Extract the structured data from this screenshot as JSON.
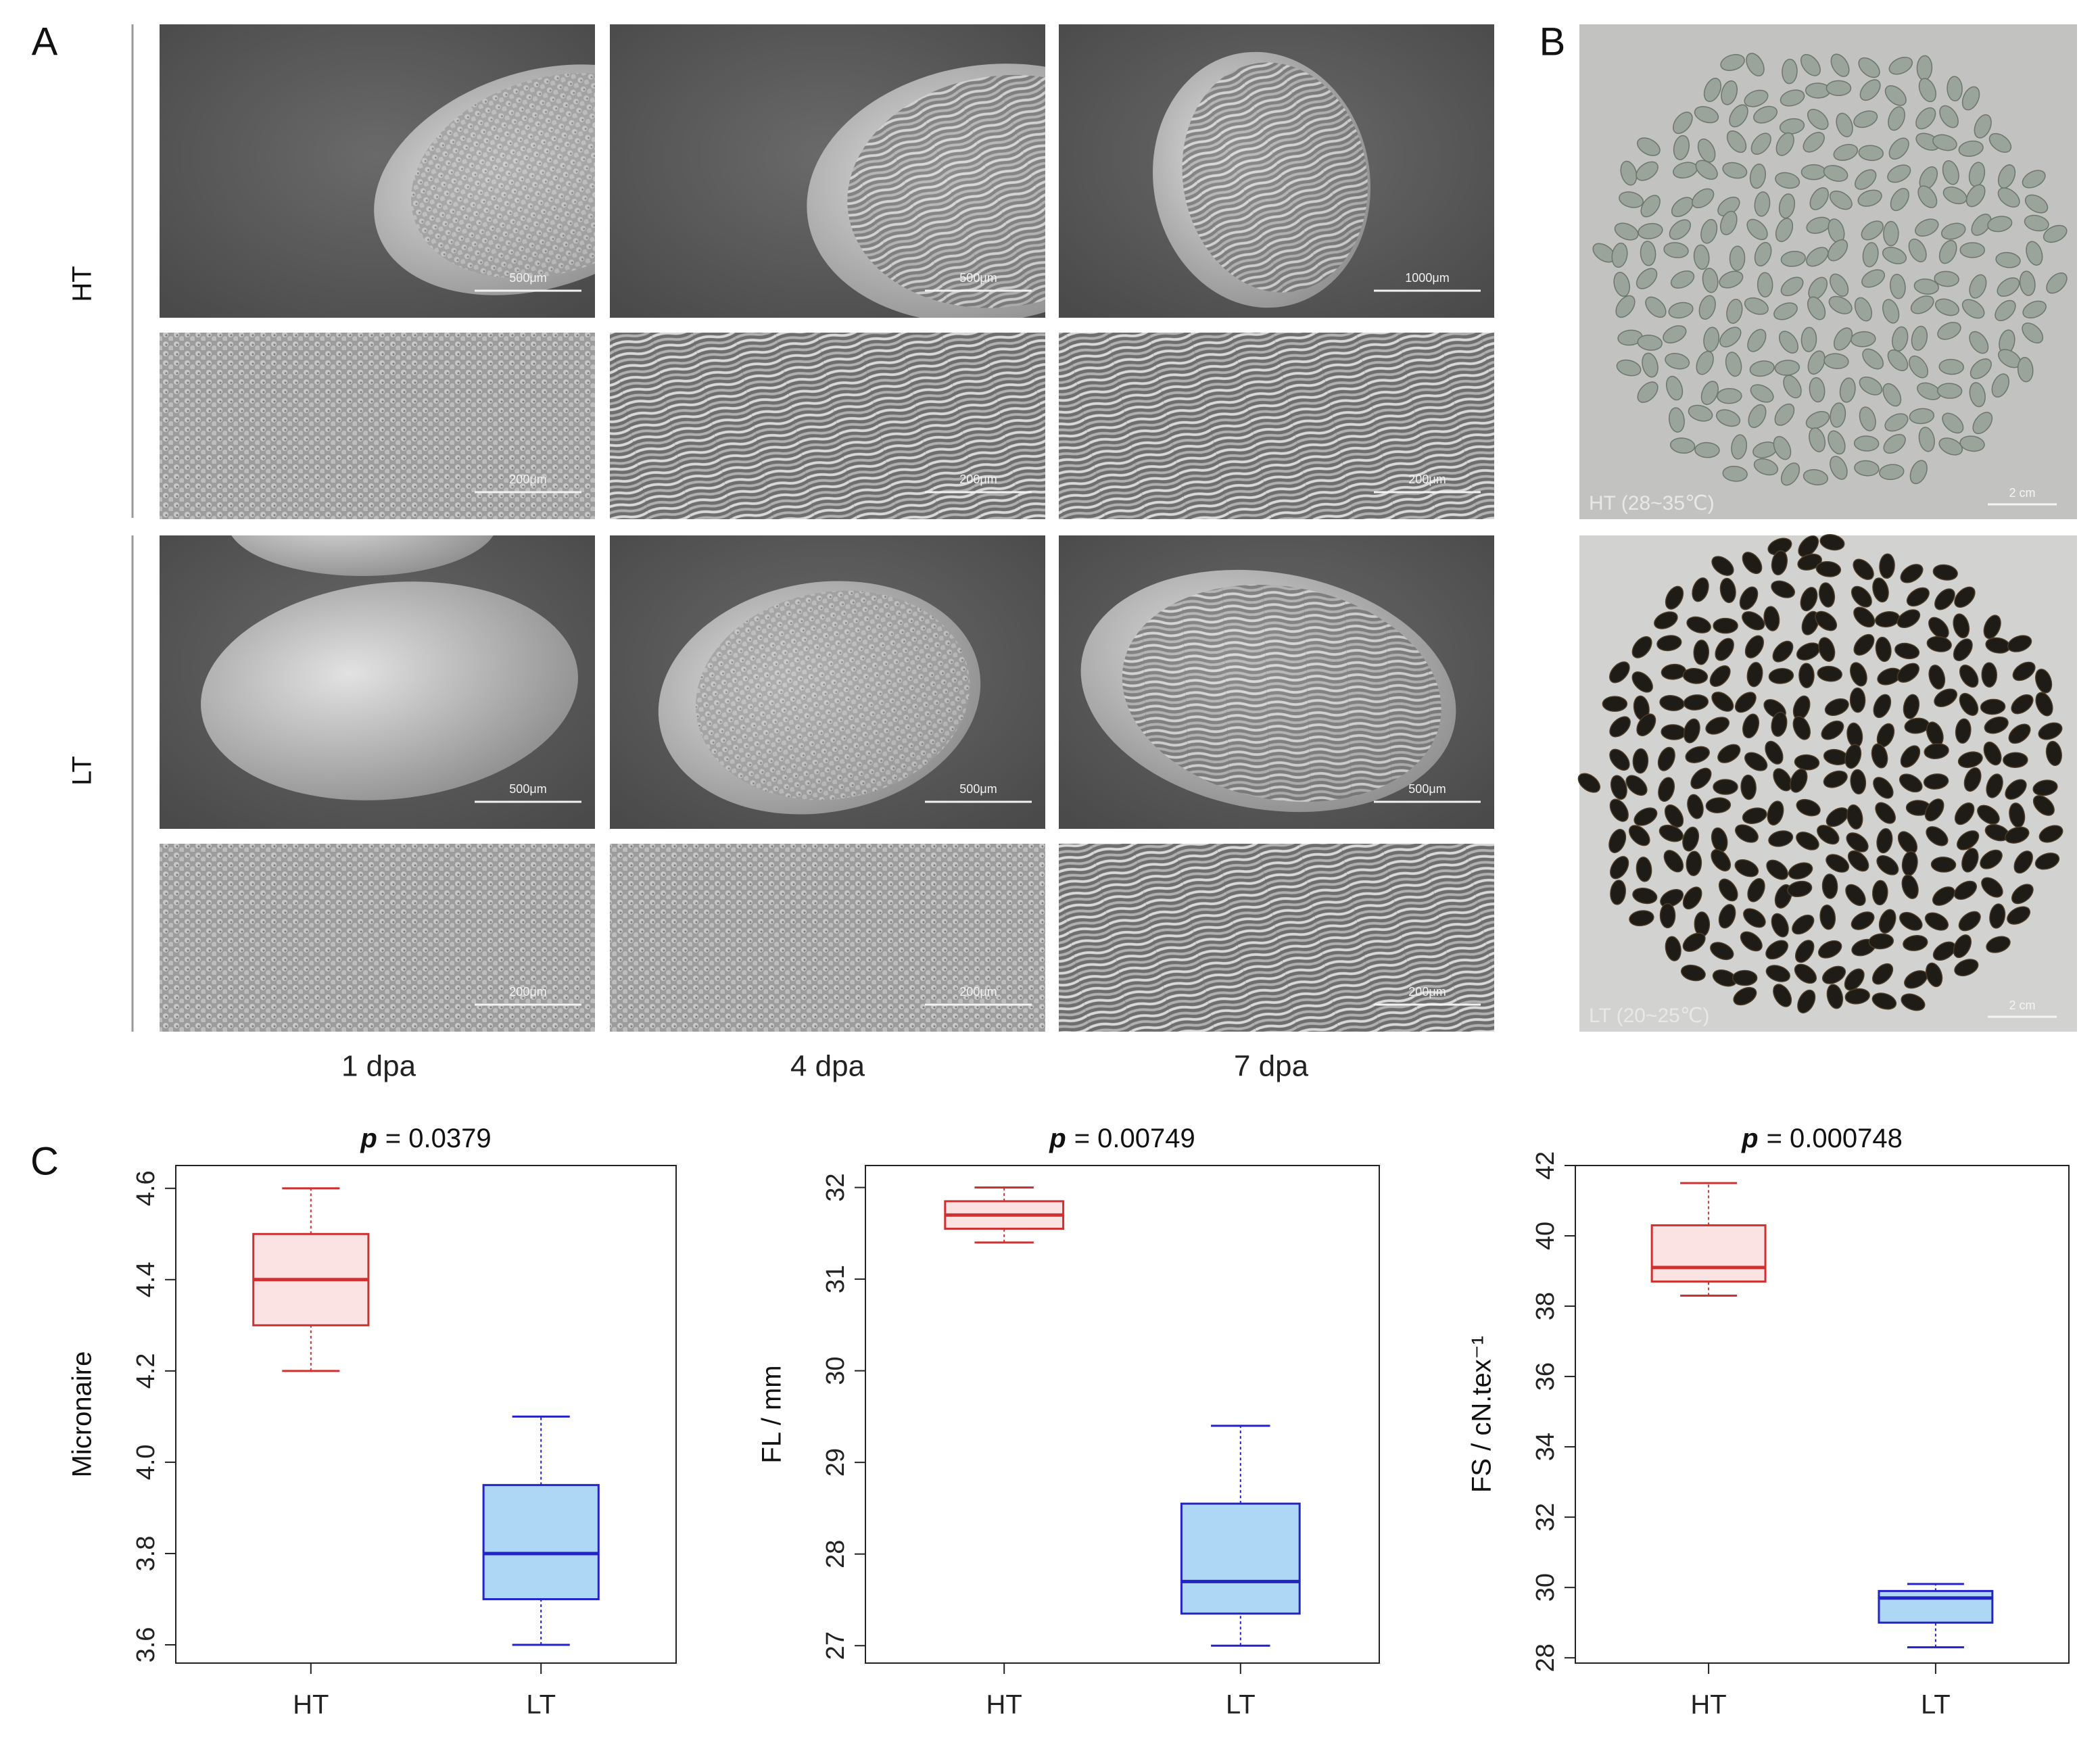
{
  "panel_labels": [
    "A",
    "B",
    "C"
  ],
  "panel_a": {
    "row_labels": [
      "HT",
      "LT"
    ],
    "column_labels": [
      "1 dpa",
      "4 dpa",
      "7 dpa"
    ],
    "scale_bars": [
      [
        "500μm",
        "500μm",
        "1000μm"
      ],
      [
        "200μm",
        "200μm",
        "200μm"
      ],
      [
        "500μm",
        "500μm",
        "500μm"
      ],
      [
        "200μm",
        "200μm",
        "200μm"
      ]
    ]
  },
  "panel_b": {
    "images": [
      {
        "label": "HT (28~35℃)",
        "scale_bar": "2 cm"
      },
      {
        "label": "LT (20~25℃)",
        "scale_bar": "2 cm"
      }
    ]
  },
  "chart_data": [
    {
      "type": "box",
      "title_emphasis": "p",
      "title": "= 0.0379",
      "ylabel": "Micronaire",
      "categories": [
        "HT",
        "LT"
      ],
      "boxes": [
        {
          "whislo": 4.2,
          "q1": 4.3,
          "med": 4.4,
          "q3": 4.5,
          "whishi": 4.6,
          "color": "#d03030",
          "fill": "#fce3e3"
        },
        {
          "whislo": 3.6,
          "q1": 3.7,
          "med": 3.8,
          "q3": 3.95,
          "whishi": 4.1,
          "color": "#2323c8",
          "fill": "#aed6f5"
        }
      ],
      "ylim": [
        3.56,
        4.65
      ],
      "yticks": [
        3.6,
        3.8,
        {
          "value": 4,
          "label": "4.0"
        },
        4.2,
        4.4,
        4.6
      ]
    },
    {
      "type": "box",
      "title_emphasis": "p",
      "title": "= 0.00749",
      "ylabel": "FL / mm",
      "categories": [
        "HT",
        "LT"
      ],
      "boxes": [
        {
          "whislo": 31.4,
          "q1": 31.55,
          "med": 31.7,
          "q3": 31.85,
          "whishi": 32.0,
          "color": "#d03030",
          "fill": "#fce3e3"
        },
        {
          "whislo": 27.0,
          "q1": 27.35,
          "med": 27.7,
          "q3": 28.55,
          "whishi": 29.4,
          "color": "#2323c8",
          "fill": "#aed6f5"
        }
      ],
      "ylim": [
        26.81,
        32.24
      ],
      "yticks": [
        27,
        28,
        29,
        30,
        31,
        32
      ]
    },
    {
      "type": "box",
      "title_emphasis": "p",
      "title": "= 0.000748",
      "ylabel": "FS / cN.tex⁻¹",
      "categories": [
        "HT",
        "LT"
      ],
      "boxes": [
        {
          "whislo": 38.3,
          "q1": 38.7,
          "med": 39.1,
          "q3": 40.3,
          "whishi": 41.5,
          "color": "#d03030",
          "fill": "#fce3e3"
        },
        {
          "whislo": 28.3,
          "q1": 29.0,
          "med": 29.7,
          "q3": 29.9,
          "whishi": 30.1,
          "color": "#2323c8",
          "fill": "#aed6f5"
        }
      ],
      "ylim": [
        27.85,
        42.0
      ],
      "yticks": [
        28,
        30,
        32,
        34,
        36,
        38,
        40,
        42
      ]
    }
  ]
}
